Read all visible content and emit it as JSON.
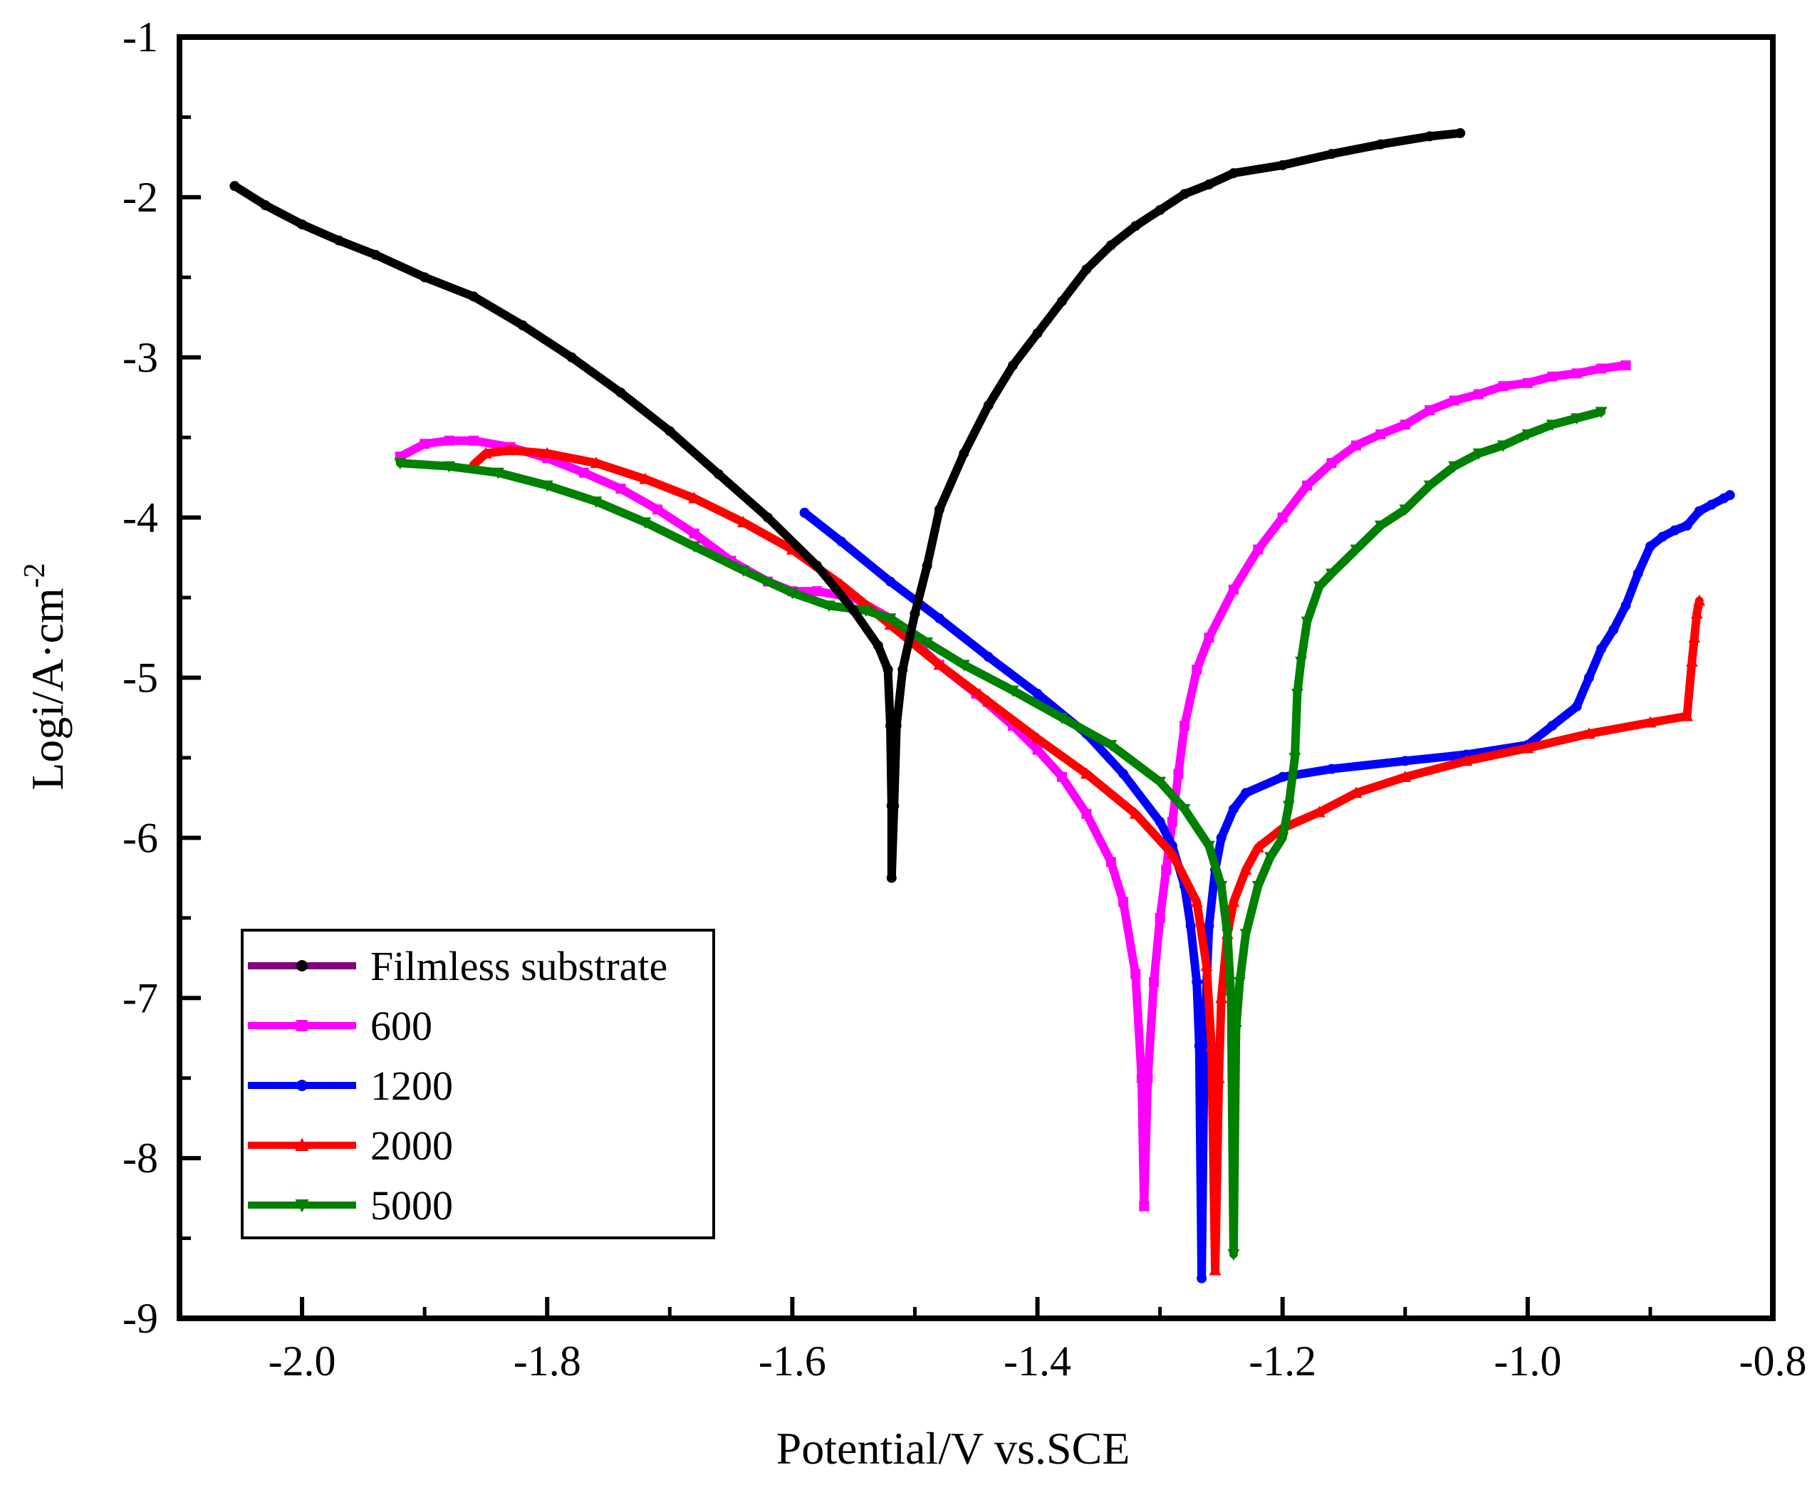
{
  "chart_data": {
    "type": "line",
    "title": "",
    "xlabel": "Potential/V vs.SCE",
    "ylabel_main": "Logi/A·cm",
    "ylabel_sup": "-2",
    "xlim": [
      -2.1,
      -0.8
    ],
    "ylim": [
      -9,
      -1
    ],
    "xticks": [
      {
        "value": -2.0,
        "label": "-2.0"
      },
      {
        "value": -1.8,
        "label": "-1.8"
      },
      {
        "value": -1.6,
        "label": "-1.6"
      },
      {
        "value": -1.4,
        "label": "-1.4"
      },
      {
        "value": -1.2,
        "label": "-1.2"
      },
      {
        "value": -1.0,
        "label": "-1.0"
      },
      {
        "value": -0.8,
        "label": "-0.8"
      }
    ],
    "yticks": [
      {
        "value": -1,
        "label": "-1"
      },
      {
        "value": -2,
        "label": "-2"
      },
      {
        "value": -3,
        "label": "-3"
      },
      {
        "value": -4,
        "label": "-4"
      },
      {
        "value": -5,
        "label": "-5"
      },
      {
        "value": -6,
        "label": "-6"
      },
      {
        "value": -7,
        "label": "-7"
      },
      {
        "value": -8,
        "label": "-8"
      },
      {
        "value": -9,
        "label": "-9"
      }
    ],
    "legend_position": "bottom-left",
    "series": [
      {
        "name": "Filmless substrate",
        "line_color": "#800080",
        "marker_color": "#000000",
        "marker": "circle",
        "x": [
          -2.055,
          -2.03,
          -2.0,
          -1.97,
          -1.94,
          -1.9,
          -1.86,
          -1.82,
          -1.78,
          -1.74,
          -1.7,
          -1.66,
          -1.62,
          -1.58,
          -1.55,
          -1.53,
          -1.522,
          -1.52,
          -1.519,
          -1.519,
          -1.517,
          -1.515,
          -1.51,
          -1.5,
          -1.49,
          -1.48,
          -1.46,
          -1.44,
          -1.42,
          -1.4,
          -1.38,
          -1.36,
          -1.34,
          -1.32,
          -1.3,
          -1.28,
          -1.26,
          -1.24,
          -1.2,
          -1.16,
          -1.12,
          -1.08,
          -1.055
        ],
        "y": [
          -1.93,
          -2.05,
          -2.17,
          -2.27,
          -2.36,
          -2.5,
          -2.62,
          -2.8,
          -3.0,
          -3.22,
          -3.46,
          -3.73,
          -4.0,
          -4.3,
          -4.58,
          -4.8,
          -4.95,
          -5.3,
          -5.8,
          -6.25,
          -5.8,
          -5.3,
          -4.95,
          -4.6,
          -4.3,
          -3.95,
          -3.6,
          -3.3,
          -3.05,
          -2.85,
          -2.65,
          -2.45,
          -2.3,
          -2.18,
          -2.08,
          -1.98,
          -1.92,
          -1.85,
          -1.8,
          -1.73,
          -1.67,
          -1.62,
          -1.6
        ]
      },
      {
        "name": "600",
        "line_color": "#ff00ff",
        "marker_color": "#ff00ff",
        "marker": "square",
        "x": [
          -1.92,
          -1.9,
          -1.88,
          -1.86,
          -1.83,
          -1.8,
          -1.77,
          -1.74,
          -1.71,
          -1.68,
          -1.65,
          -1.62,
          -1.6,
          -1.58,
          -1.55,
          -1.52,
          -1.5,
          -1.48,
          -1.45,
          -1.42,
          -1.4,
          -1.38,
          -1.36,
          -1.34,
          -1.33,
          -1.32,
          -1.315,
          -1.313,
          -1.31,
          -1.305,
          -1.3,
          -1.295,
          -1.29,
          -1.285,
          -1.28,
          -1.27,
          -1.26,
          -1.24,
          -1.22,
          -1.2,
          -1.18,
          -1.16,
          -1.14,
          -1.12,
          -1.1,
          -1.08,
          -1.06,
          -1.04,
          -1.02,
          -1.0,
          -0.98,
          -0.96,
          -0.94,
          -0.92
        ],
        "y": [
          -3.62,
          -3.54,
          -3.52,
          -3.52,
          -3.56,
          -3.63,
          -3.72,
          -3.82,
          -3.95,
          -4.1,
          -4.27,
          -4.4,
          -4.46,
          -4.46,
          -4.5,
          -4.63,
          -4.78,
          -4.92,
          -5.1,
          -5.3,
          -5.45,
          -5.62,
          -5.85,
          -6.15,
          -6.4,
          -6.85,
          -7.5,
          -8.3,
          -7.5,
          -6.9,
          -6.5,
          -6.2,
          -5.9,
          -5.6,
          -5.3,
          -4.95,
          -4.75,
          -4.45,
          -4.2,
          -4.0,
          -3.8,
          -3.66,
          -3.55,
          -3.48,
          -3.42,
          -3.33,
          -3.27,
          -3.23,
          -3.18,
          -3.16,
          -3.12,
          -3.1,
          -3.07,
          -3.05
        ]
      },
      {
        "name": "1200",
        "line_color": "#0000ff",
        "marker_color": "#0000ff",
        "marker": "circle",
        "x": [
          -1.59,
          -1.56,
          -1.52,
          -1.48,
          -1.44,
          -1.4,
          -1.36,
          -1.33,
          -1.3,
          -1.29,
          -1.28,
          -1.275,
          -1.27,
          -1.268,
          -1.266,
          -1.264,
          -1.262,
          -1.26,
          -1.255,
          -1.25,
          -1.24,
          -1.23,
          -1.2,
          -1.16,
          -1.1,
          -1.05,
          -1.0,
          -0.98,
          -0.96,
          -0.95,
          -0.94,
          -0.93,
          -0.92,
          -0.91,
          -0.9,
          -0.89,
          -0.88,
          -0.87,
          -0.86,
          -0.85,
          -0.84,
          -0.835
        ],
        "y": [
          -3.97,
          -4.15,
          -4.4,
          -4.63,
          -4.87,
          -5.1,
          -5.35,
          -5.6,
          -5.9,
          -6.05,
          -6.3,
          -6.55,
          -6.9,
          -7.3,
          -8.75,
          -7.4,
          -6.9,
          -6.55,
          -6.2,
          -6.0,
          -5.82,
          -5.72,
          -5.62,
          -5.57,
          -5.52,
          -5.48,
          -5.42,
          -5.3,
          -5.18,
          -5.0,
          -4.82,
          -4.7,
          -4.55,
          -4.35,
          -4.18,
          -4.12,
          -4.08,
          -4.05,
          -3.96,
          -3.92,
          -3.88,
          -3.86
        ]
      },
      {
        "name": "2000",
        "line_color": "#ff0000",
        "marker_color": "#ff0000",
        "marker": "triangle-up",
        "x": [
          -1.86,
          -1.85,
          -1.83,
          -1.8,
          -1.76,
          -1.72,
          -1.68,
          -1.64,
          -1.6,
          -1.56,
          -1.52,
          -1.48,
          -1.44,
          -1.4,
          -1.36,
          -1.32,
          -1.29,
          -1.27,
          -1.262,
          -1.258,
          -1.255,
          -1.252,
          -1.25,
          -1.245,
          -1.24,
          -1.23,
          -1.22,
          -1.2,
          -1.17,
          -1.14,
          -1.1,
          -1.05,
          -1.0,
          -0.95,
          -0.9,
          -0.87,
          -0.866,
          -0.864,
          -0.862,
          -0.86
        ],
        "y": [
          -3.67,
          -3.6,
          -3.58,
          -3.6,
          -3.66,
          -3.76,
          -3.88,
          -4.03,
          -4.2,
          -4.42,
          -4.67,
          -4.92,
          -5.15,
          -5.38,
          -5.6,
          -5.85,
          -6.1,
          -6.4,
          -6.8,
          -7.3,
          -8.7,
          -7.5,
          -7.0,
          -6.6,
          -6.4,
          -6.2,
          -6.06,
          -5.94,
          -5.84,
          -5.72,
          -5.62,
          -5.52,
          -5.44,
          -5.35,
          -5.28,
          -5.24,
          -4.9,
          -4.75,
          -4.6,
          -4.52
        ]
      },
      {
        "name": "5000",
        "line_color": "#008000",
        "marker_color": "#008000",
        "marker": "triangle-down",
        "x": [
          -1.92,
          -1.88,
          -1.84,
          -1.8,
          -1.76,
          -1.72,
          -1.68,
          -1.64,
          -1.6,
          -1.57,
          -1.54,
          -1.52,
          -1.49,
          -1.46,
          -1.42,
          -1.38,
          -1.34,
          -1.3,
          -1.28,
          -1.26,
          -1.25,
          -1.245,
          -1.242,
          -1.24,
          -1.238,
          -1.235,
          -1.23,
          -1.22,
          -1.21,
          -1.2,
          -1.195,
          -1.19,
          -1.188,
          -1.185,
          -1.18,
          -1.17,
          -1.16,
          -1.14,
          -1.12,
          -1.1,
          -1.08,
          -1.06,
          -1.04,
          -1.02,
          -1.0,
          -0.98,
          -0.96,
          -0.94
        ],
        "y": [
          -3.66,
          -3.68,
          -3.72,
          -3.8,
          -3.9,
          -4.03,
          -4.18,
          -4.33,
          -4.47,
          -4.55,
          -4.58,
          -4.63,
          -4.78,
          -4.92,
          -5.08,
          -5.25,
          -5.42,
          -5.65,
          -5.82,
          -6.05,
          -6.3,
          -6.6,
          -7.0,
          -8.6,
          -7.2,
          -6.9,
          -6.6,
          -6.3,
          -6.12,
          -6.0,
          -5.8,
          -5.5,
          -5.1,
          -4.9,
          -4.65,
          -4.43,
          -4.35,
          -4.2,
          -4.05,
          -3.95,
          -3.8,
          -3.68,
          -3.6,
          -3.55,
          -3.48,
          -3.42,
          -3.38,
          -3.34
        ]
      }
    ]
  }
}
